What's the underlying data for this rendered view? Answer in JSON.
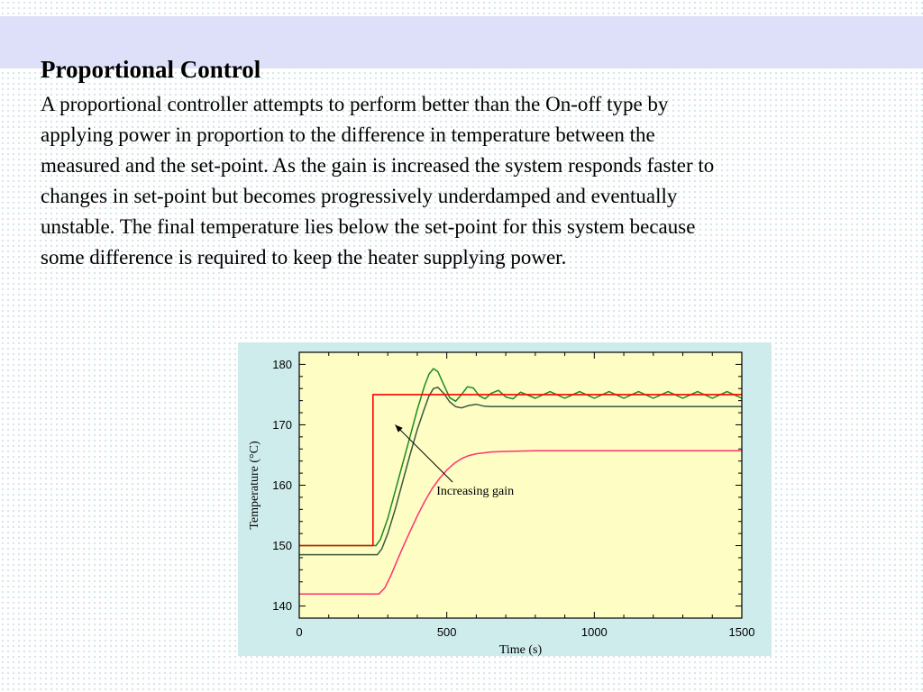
{
  "slide": {
    "title": "Proportional Control",
    "body_lines": [
      "A proportional controller attempts to perform better than the On-off type by",
      "applying power in proportion to the difference in temperature between the",
      "measured and the set-point.  As the gain is increased the system responds faster to",
      "changes in set-point but becomes progressively underdamped and eventually",
      "unstable. The final temperature lies below the set-point for this system because",
      "some difference is required to keep the heater supplying power."
    ]
  },
  "colors": {
    "band": "#dde0f8",
    "figure_bg": "#cfecec",
    "plot_bg": "#fdfdc4",
    "setpoint": "#ff0000",
    "low_gain": "#ff3370",
    "mid_gain": "#3a5a3a",
    "high_gain": "#1f8a1f"
  },
  "chart_data": {
    "type": "line",
    "xlabel": "Time (s)",
    "ylabel": "Temperature (°C)",
    "xlim": [
      0,
      1500
    ],
    "ylim": [
      138,
      182
    ],
    "xticks": [
      0,
      500,
      1000,
      1500
    ],
    "yticks": [
      140,
      150,
      160,
      170,
      180
    ],
    "annotation": {
      "text": "Increasing gain",
      "arrow_from": [
        520,
        160.5
      ],
      "arrow_to": [
        325,
        170
      ]
    },
    "series": [
      {
        "key": "setpoint",
        "x": [
          0,
          250,
          250,
          1500
        ],
        "y": [
          150,
          150,
          175,
          175
        ]
      },
      {
        "key": "low_gain",
        "x": [
          0,
          250,
          270,
          290,
          310,
          330,
          350,
          375,
          400,
          425,
          450,
          475,
          500,
          525,
          550,
          575,
          600,
          650,
          700,
          800,
          1000,
          1500
        ],
        "y": [
          142,
          142,
          142,
          143,
          145,
          147.3,
          149.6,
          152.3,
          154.9,
          157.3,
          159.4,
          161.1,
          162.5,
          163.6,
          164.4,
          164.9,
          165.2,
          165.5,
          165.6,
          165.7,
          165.7,
          165.7
        ]
      },
      {
        "key": "mid_gain",
        "x": [
          0,
          250,
          265,
          280,
          300,
          325,
          350,
          375,
          400,
          425,
          440,
          455,
          470,
          490,
          510,
          530,
          550,
          575,
          600,
          625,
          650,
          700,
          800,
          1000,
          1500
        ],
        "y": [
          148.5,
          148.5,
          148.5,
          149.5,
          152,
          156,
          160.5,
          165,
          169.2,
          172.8,
          174.8,
          176,
          176.2,
          175.2,
          173.8,
          173,
          172.8,
          173.2,
          173.4,
          173.1,
          173,
          173,
          173,
          173,
          173
        ]
      },
      {
        "key": "high_gain",
        "x": [
          0,
          250,
          260,
          275,
          300,
          325,
          350,
          375,
          400,
          425,
          440,
          455,
          470,
          490,
          510,
          530,
          550,
          570,
          590,
          610,
          630,
          650,
          675,
          700,
          725,
          750,
          800,
          850,
          900,
          950,
          1000,
          1050,
          1100,
          1150,
          1200,
          1250,
          1300,
          1350,
          1400,
          1450,
          1500
        ],
        "y": [
          150,
          150,
          150,
          151,
          154.5,
          159,
          163.5,
          168,
          172.5,
          176.5,
          178.4,
          179.3,
          178.8,
          176.6,
          174.5,
          173.9,
          175,
          176.3,
          176.1,
          174.8,
          174.3,
          175.2,
          175.7,
          174.6,
          174.3,
          175.4,
          174.4,
          175.5,
          174.4,
          175.5,
          174.4,
          175.5,
          174.4,
          175.5,
          174.4,
          175.5,
          174.4,
          175.5,
          174.4,
          175.5,
          174.4
        ]
      }
    ]
  }
}
